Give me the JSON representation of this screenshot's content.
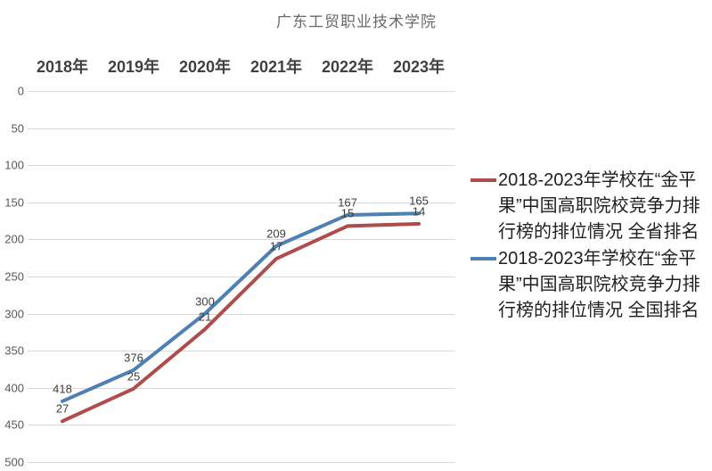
{
  "chart_data": {
    "type": "line",
    "stacked": true,
    "title": "广东工贸职业技术学院",
    "categories": [
      "2018年",
      "2019年",
      "2020年",
      "2021年",
      "2022年",
      "2023年"
    ],
    "series": [
      {
        "name": "2018-2023年学校在“金平果”中国高职院校竞争力排行榜的排位情况 全省排名",
        "color": "#ae4d4b",
        "values": [
          27,
          25,
          21,
          17,
          15,
          14
        ]
      },
      {
        "name": "2018-2023年学校在“金平果”中国高职院校竞争力排行榜的排位情况 全国排名",
        "color": "#4e7fb5",
        "values": [
          418,
          376,
          300,
          209,
          167,
          165
        ]
      }
    ],
    "y_ticks": [
      0,
      50,
      100,
      150,
      200,
      250,
      300,
      350,
      400,
      450,
      500
    ],
    "ylim": [
      0,
      500
    ],
    "xlabel": "",
    "ylabel": "",
    "grid": true,
    "legend_position": "right",
    "x_labels_position": "top",
    "gridline_color": "#d9d9d9"
  }
}
